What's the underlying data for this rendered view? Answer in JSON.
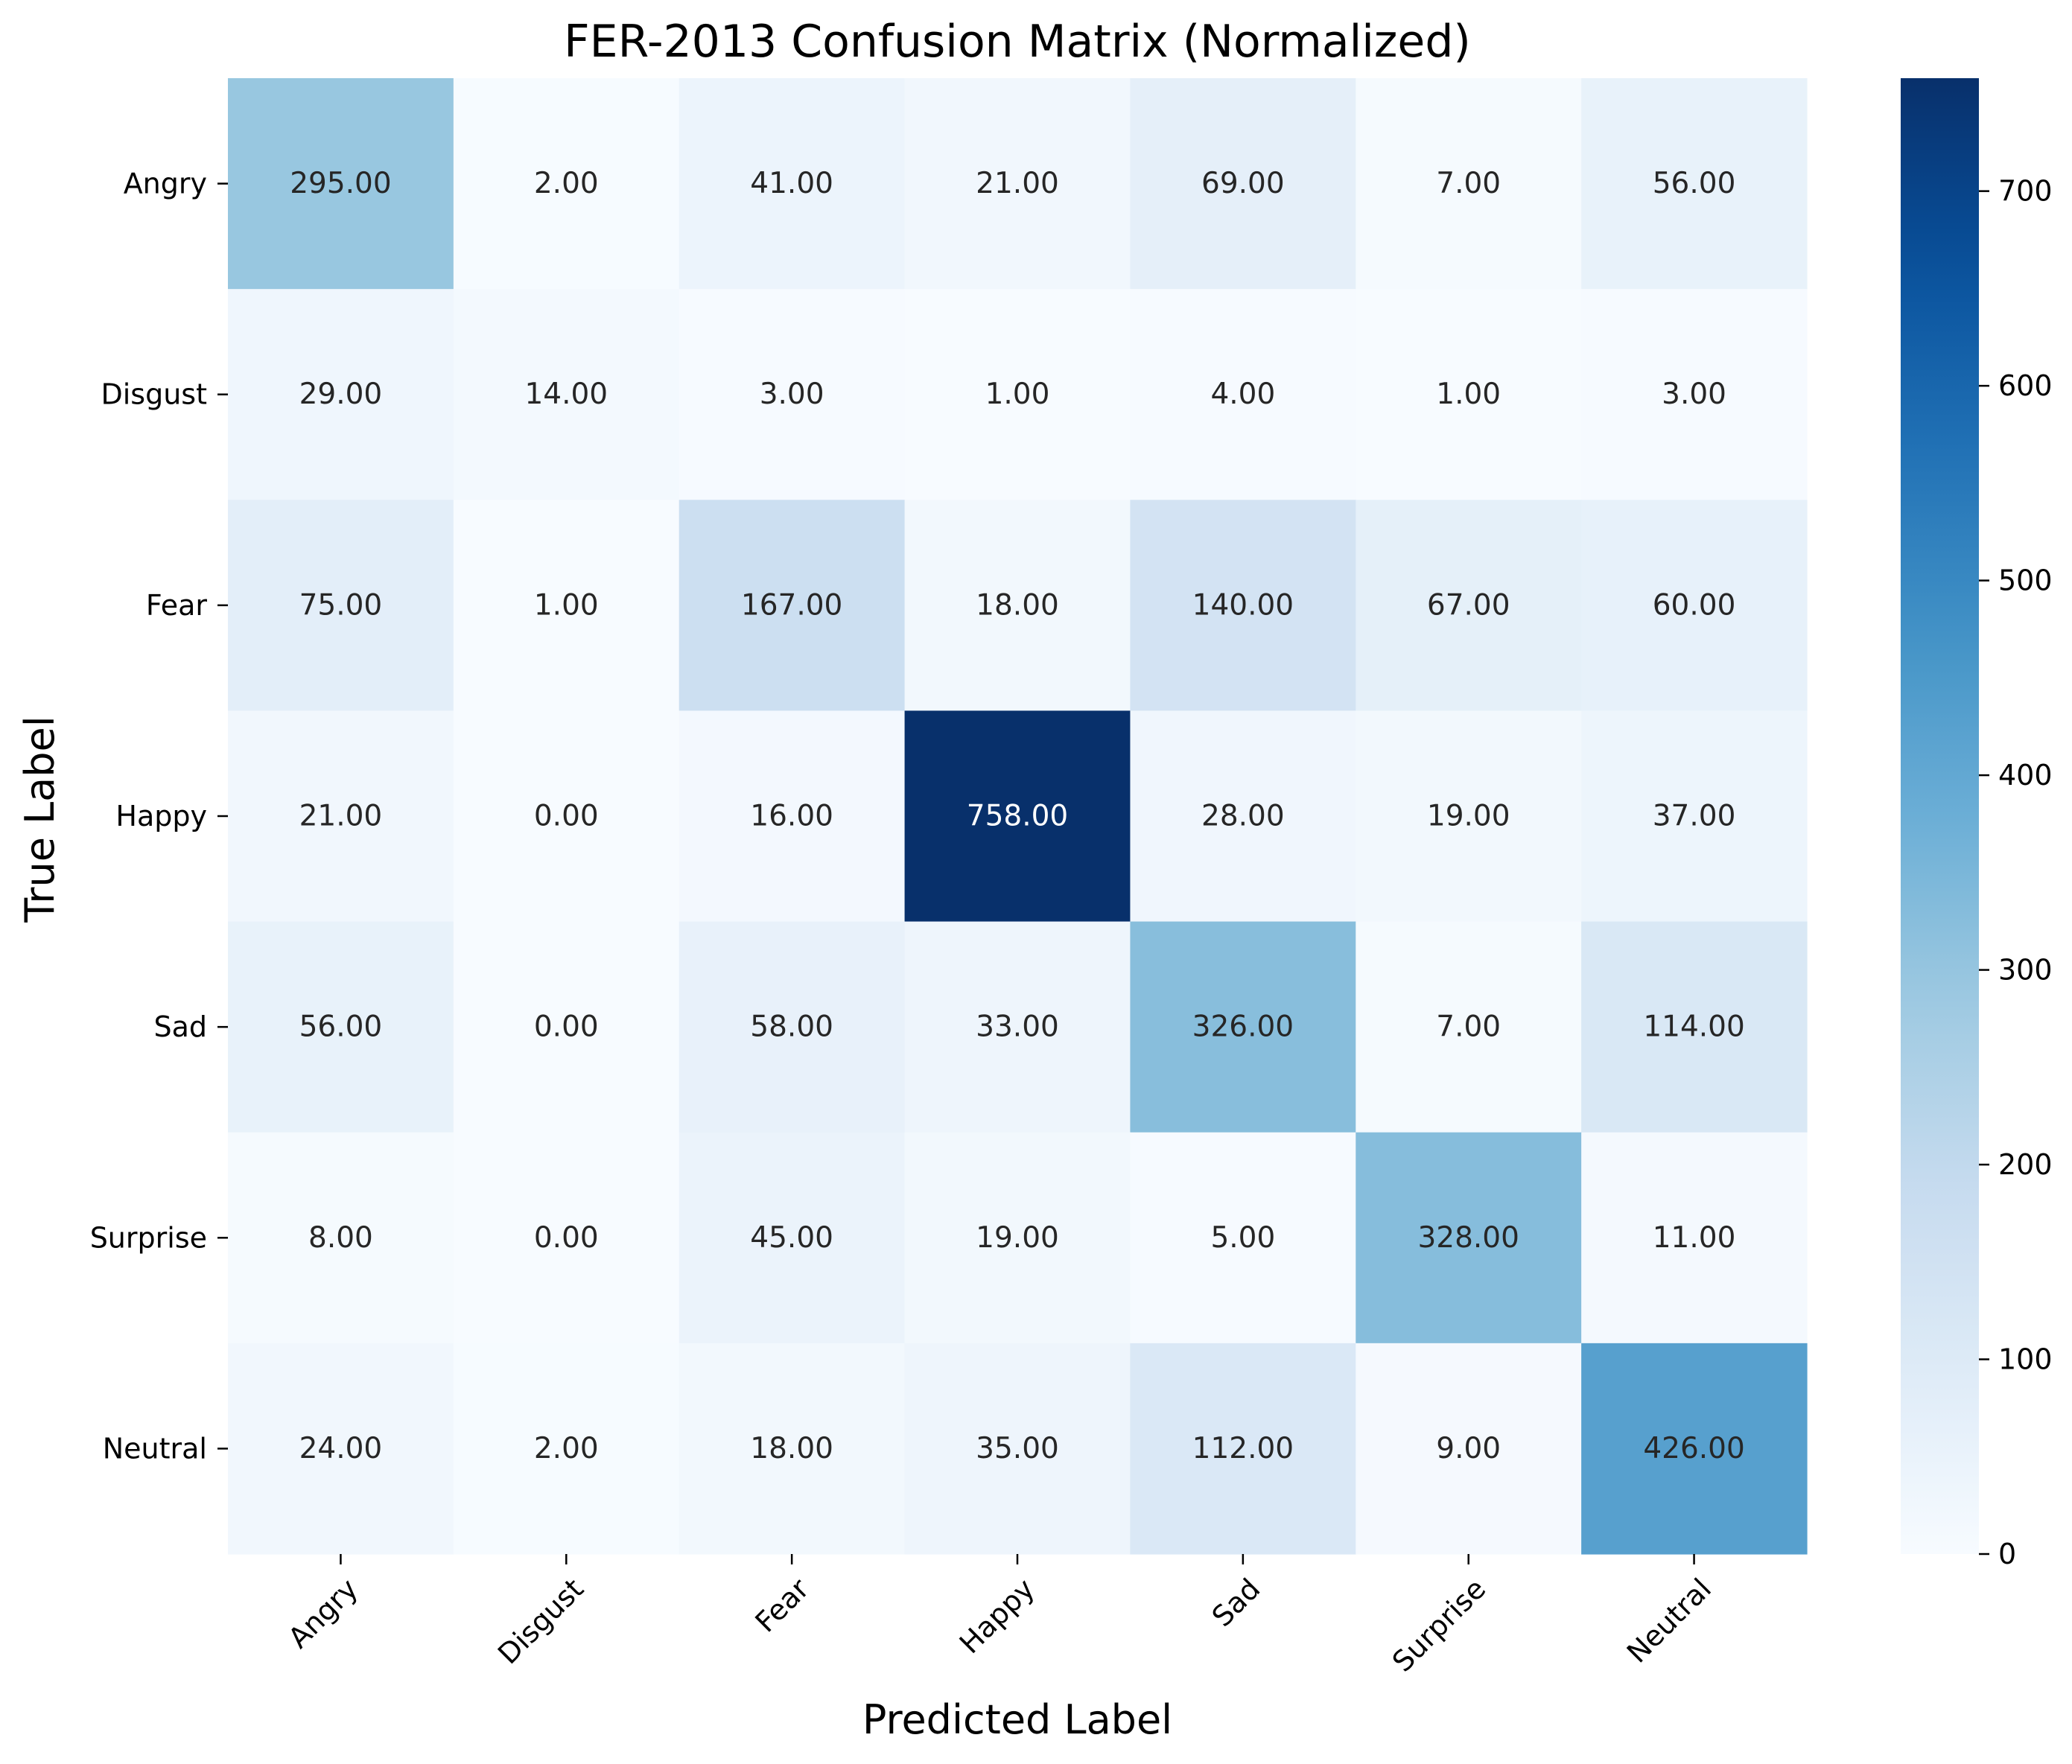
{
  "chart_data": {
    "type": "heatmap",
    "title": "FER-2013 Confusion Matrix (Normalized)",
    "xlabel": "Predicted Label",
    "ylabel": "True Label",
    "x_categories": [
      "Angry",
      "Disgust",
      "Fear",
      "Happy",
      "Sad",
      "Surprise",
      "Neutral"
    ],
    "y_categories": [
      "Angry",
      "Disgust",
      "Fear",
      "Happy",
      "Sad",
      "Surprise",
      "Neutral"
    ],
    "values": [
      [
        295,
        2,
        41,
        21,
        69,
        7,
        56
      ],
      [
        29,
        14,
        3,
        1,
        4,
        1,
        3
      ],
      [
        75,
        1,
        167,
        18,
        140,
        67,
        60
      ],
      [
        21,
        0,
        16,
        758,
        28,
        19,
        37
      ],
      [
        56,
        0,
        58,
        33,
        326,
        7,
        114
      ],
      [
        8,
        0,
        45,
        19,
        5,
        328,
        11
      ],
      [
        24,
        2,
        18,
        35,
        112,
        9,
        426
      ]
    ],
    "value_format": "0.00",
    "colormap": "Blues",
    "colorbar": {
      "range": [
        0,
        758
      ],
      "ticks": [
        0,
        100,
        200,
        300,
        400,
        500,
        600,
        700
      ]
    },
    "annotation_colors": {
      "dark_text": "#262626",
      "light_text": "#ffffff"
    },
    "grid": false,
    "legend": "colorbar-right"
  }
}
